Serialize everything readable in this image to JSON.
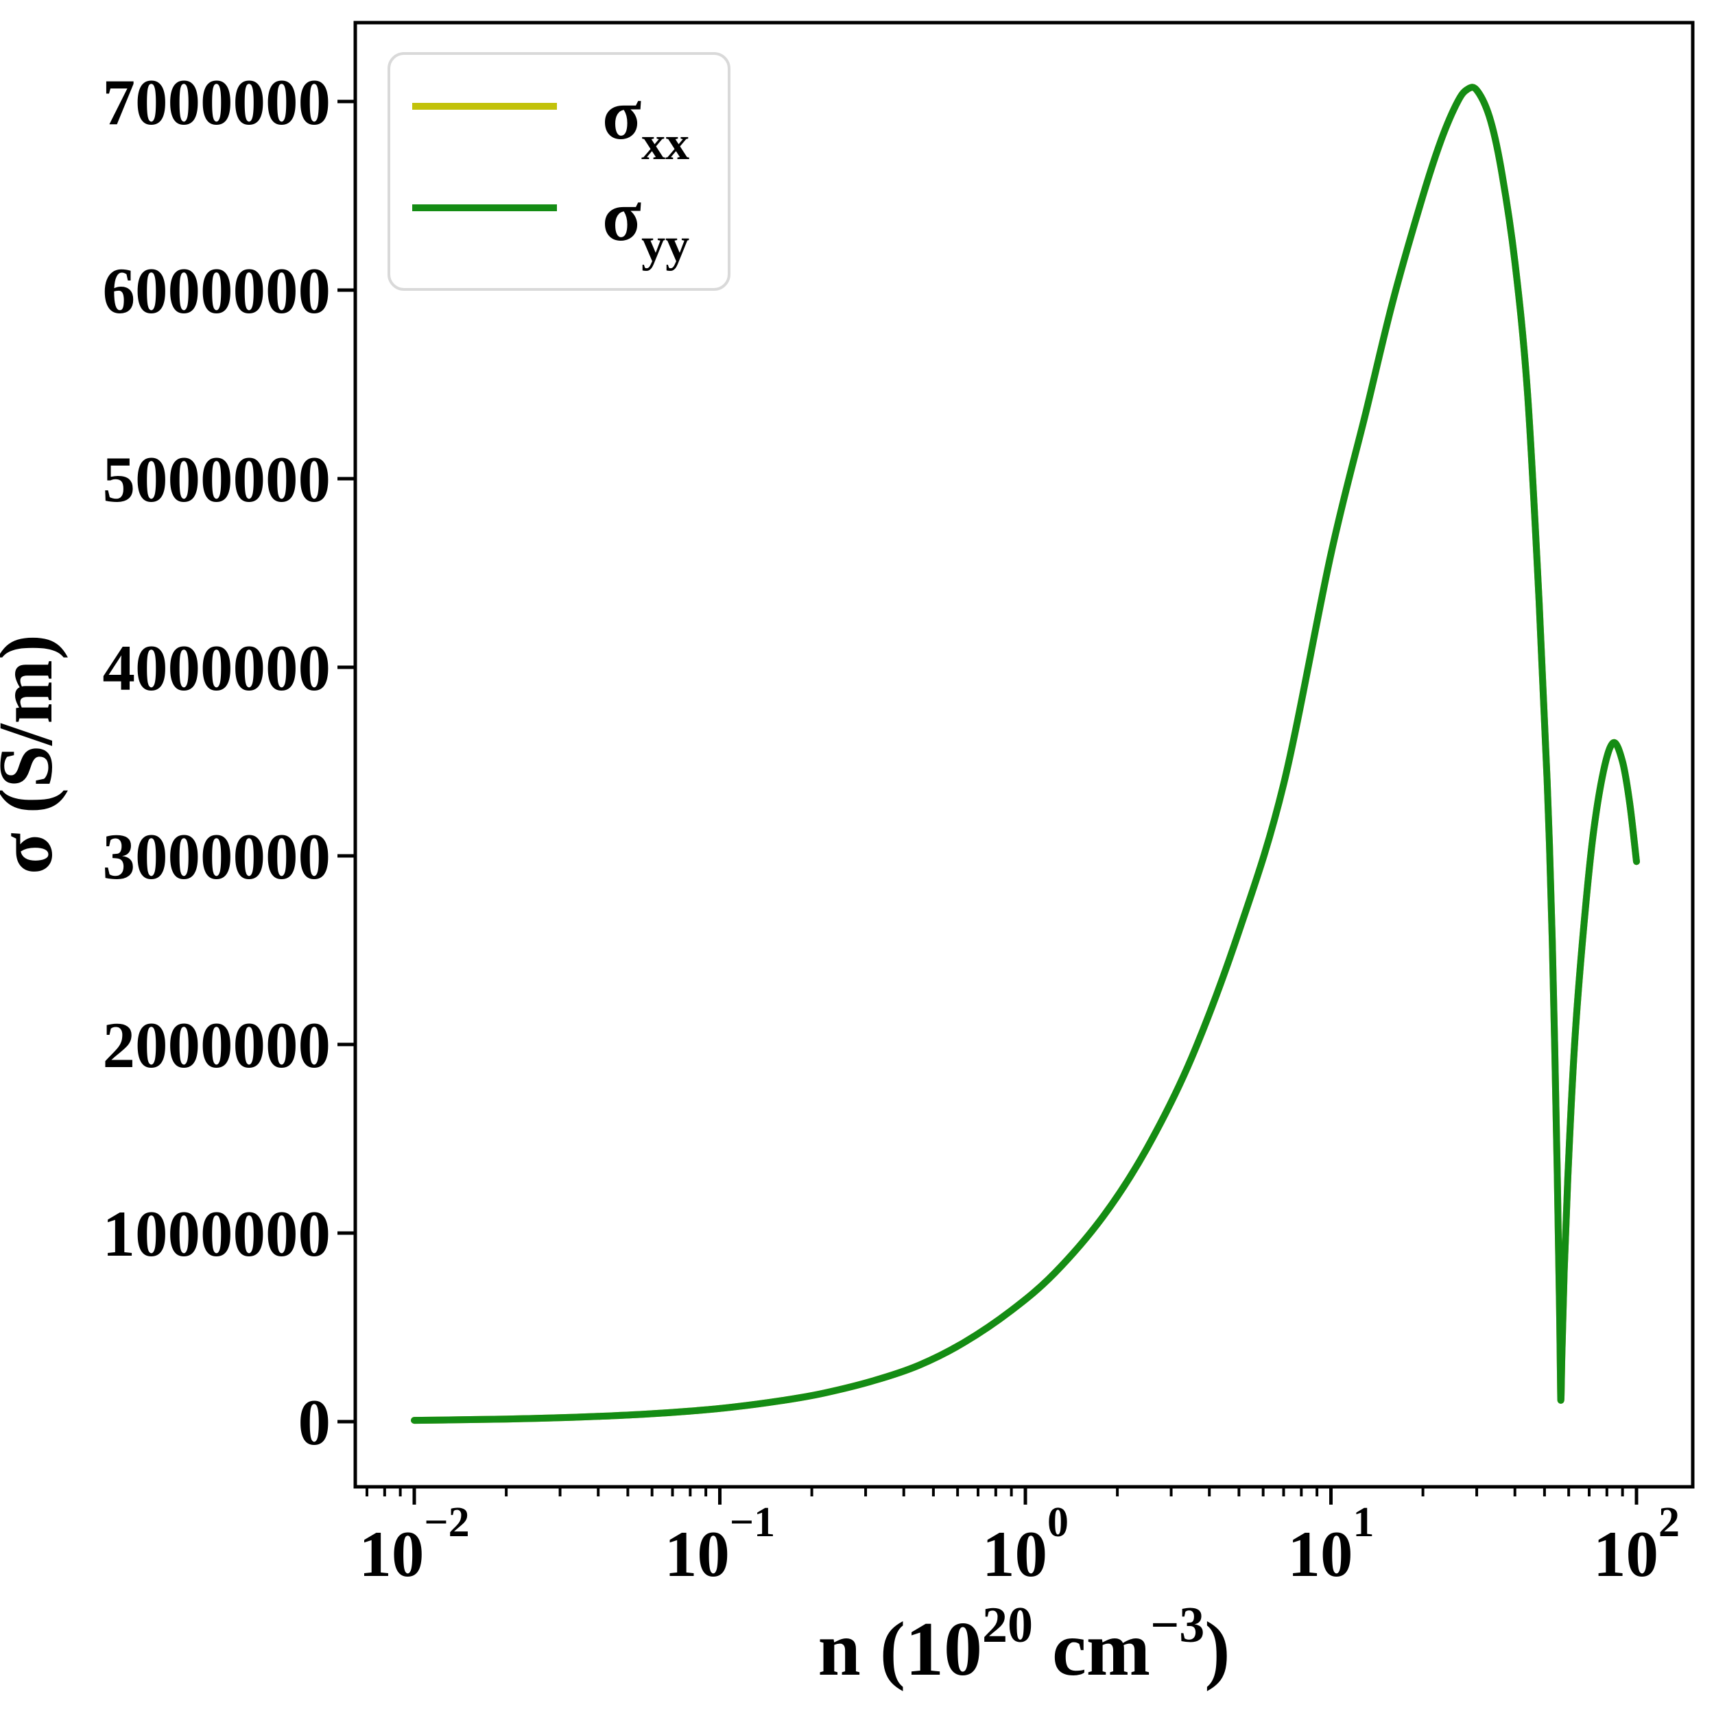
{
  "chart_data": {
    "type": "line",
    "title": "",
    "xlabel_plain": "n (10^20 cm^-3)",
    "xlabel_parts": [
      {
        "t": "n (10",
        "sup": false
      },
      {
        "t": "20",
        "sup": true
      },
      {
        "t": " cm",
        "sup": false
      },
      {
        "t": "−3",
        "sup": true
      },
      {
        "t": ")",
        "sup": false
      }
    ],
    "ylabel": "σ (S/m)",
    "x_scale": "log",
    "y_scale": "linear",
    "xlim": [
      0.0064,
      153
    ],
    "ylim": [
      -350000,
      7420000
    ],
    "grid": false,
    "legend_position": "upper-left",
    "frame_color": "#000000",
    "legend_border_color": "#d9d9d9",
    "x_tick_labels": [
      {
        "value": 0.01,
        "base": "10",
        "exp": "−2"
      },
      {
        "value": 0.1,
        "base": "10",
        "exp": "−1"
      },
      {
        "value": 1,
        "base": "10",
        "exp": "0"
      },
      {
        "value": 10,
        "base": "10",
        "exp": "1"
      },
      {
        "value": 100,
        "base": "10",
        "exp": "2"
      }
    ],
    "y_ticks": [
      {
        "value": 0,
        "label": "0"
      },
      {
        "value": 1000000,
        "label": "1000000"
      },
      {
        "value": 2000000,
        "label": "2000000"
      },
      {
        "value": 3000000,
        "label": "3000000"
      },
      {
        "value": 4000000,
        "label": "4000000"
      },
      {
        "value": 5000000,
        "label": "5000000"
      },
      {
        "value": 6000000,
        "label": "6000000"
      },
      {
        "value": 7000000,
        "label": "7000000"
      }
    ],
    "x": [
      0.01,
      0.014,
      0.02,
      0.028,
      0.04,
      0.056,
      0.08,
      0.11,
      0.16,
      0.22,
      0.32,
      0.45,
      0.63,
      0.9,
      1.25,
      1.8,
      2.5,
      3.5,
      5,
      7,
      10,
      13,
      16,
      20,
      23,
      26,
      28,
      30,
      33,
      36,
      40,
      44,
      48,
      51,
      53,
      55,
      56,
      56.5,
      57,
      58,
      60,
      63,
      67,
      72,
      78,
      84,
      90,
      95,
      100
    ],
    "series": [
      {
        "name": "sigma_xx",
        "legend_base": "σ",
        "legend_sub": "xx",
        "color": "#c2c20a",
        "values": [
          7000,
          9800,
          14000,
          19600,
          28000,
          39000,
          56000,
          77000,
          112000,
          152000,
          218000,
          300000,
          420000,
          590000,
          790000,
          1090000,
          1450000,
          1930000,
          2600000,
          3380000,
          4600000,
          5350000,
          5950000,
          6500000,
          6800000,
          7000000,
          7065000,
          7060000,
          6920000,
          6650000,
          6150000,
          5450000,
          4350000,
          3400000,
          2550000,
          1350000,
          600000,
          120000,
          350000,
          800000,
          1400000,
          2050000,
          2600000,
          3100000,
          3450000,
          3600000,
          3500000,
          3280000,
          2970000
        ]
      },
      {
        "name": "sigma_yy",
        "legend_base": "σ",
        "legend_sub": "yy",
        "color": "#148c14",
        "values": [
          7000,
          9800,
          14000,
          19600,
          28000,
          39000,
          56000,
          77000,
          112000,
          152000,
          218000,
          300000,
          420000,
          590000,
          790000,
          1090000,
          1450000,
          1930000,
          2600000,
          3380000,
          4600000,
          5350000,
          5950000,
          6500000,
          6800000,
          7000000,
          7065000,
          7060000,
          6920000,
          6650000,
          6150000,
          5450000,
          4350000,
          3400000,
          2550000,
          1350000,
          600000,
          120000,
          350000,
          800000,
          1400000,
          2050000,
          2600000,
          3100000,
          3450000,
          3600000,
          3500000,
          3280000,
          2970000
        ]
      }
    ]
  }
}
